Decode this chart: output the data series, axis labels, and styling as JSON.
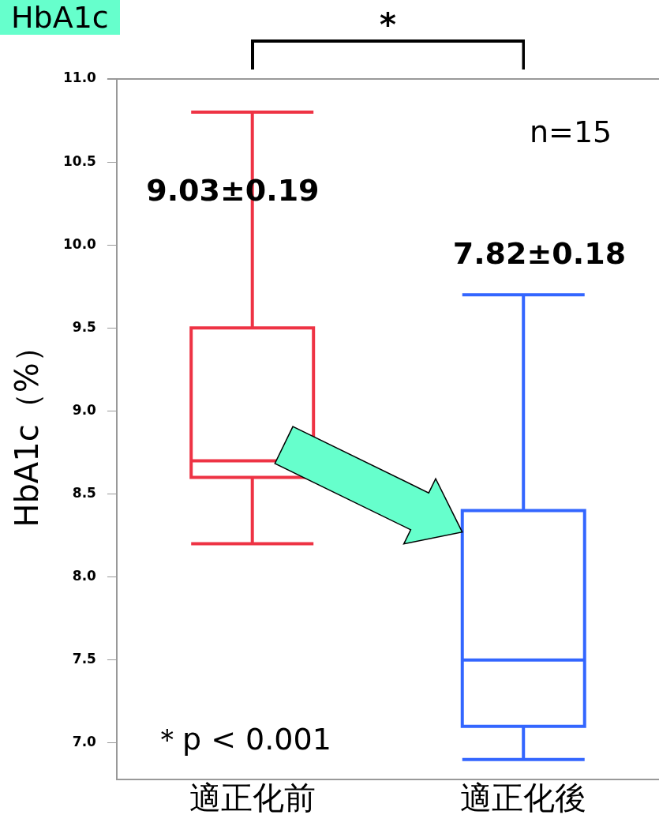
{
  "chart_data": {
    "type": "box",
    "title": "HbA1c",
    "ylabel": "HbA1c（%）",
    "categories": [
      "適正化前",
      "適正化後"
    ],
    "colors": [
      "#ee3344",
      "#3366ff"
    ],
    "boxes": [
      {
        "low": 8.2,
        "q1": 8.6,
        "median": 8.7,
        "q3": 9.5,
        "high": 10.8
      },
      {
        "low": 6.9,
        "q1": 7.1,
        "median": 7.5,
        "q3": 8.4,
        "high": 9.7
      }
    ],
    "ylim": [
      6.78,
      11.0
    ],
    "yticks": [
      {
        "value": 7,
        "label": "7.0"
      },
      {
        "value": 7.5,
        "label": "7.5"
      },
      {
        "value": 8,
        "label": "8.0"
      },
      {
        "value": 8.5,
        "label": "8.5"
      },
      {
        "value": 9,
        "label": "9.0"
      },
      {
        "value": 9.5,
        "label": "9.5"
      },
      {
        "value": 10,
        "label": "10.0"
      },
      {
        "value": 10.5,
        "label": "10.5"
      },
      {
        "value": 11,
        "label": "11.0"
      }
    ],
    "grid": false,
    "annotations": [
      "9.03±0.19",
      "7.82±0.18",
      "*",
      "n=15",
      "＊p < 0.001"
    ]
  }
}
